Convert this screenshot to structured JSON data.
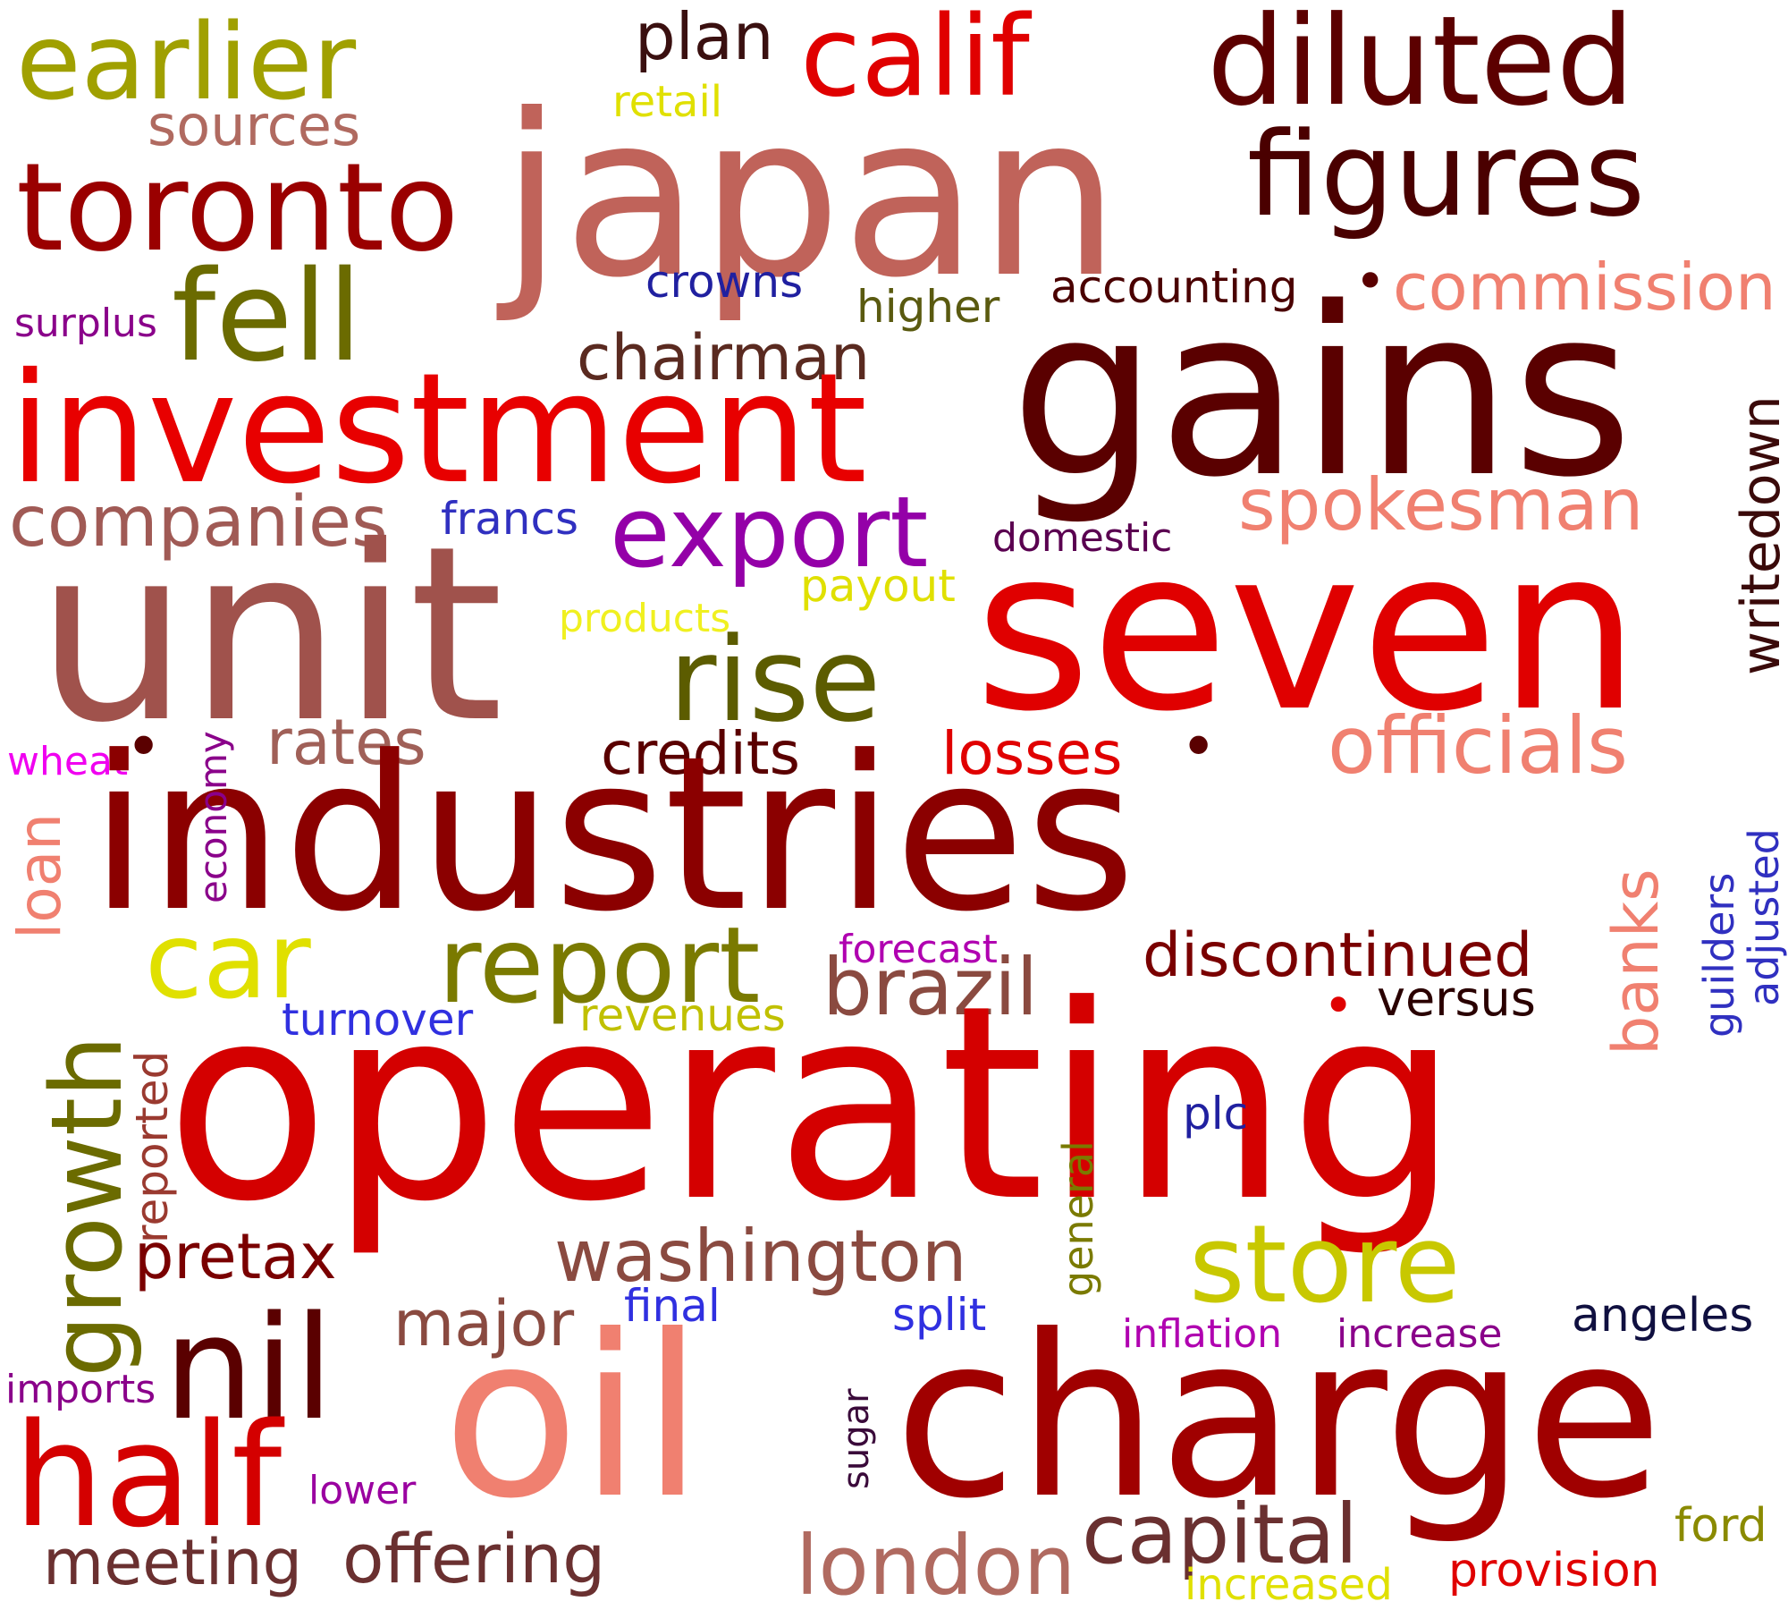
{
  "words": [
    {
      "id": "operating",
      "text": "operating",
      "color": "#d40000"
    },
    {
      "id": "industries",
      "text": "industries",
      "color": "#8b0000"
    },
    {
      "id": "japan",
      "text": "japan",
      "color": "#c0635a"
    },
    {
      "id": "unit",
      "text": "unit",
      "color": "#a0524c"
    },
    {
      "id": "seven",
      "text": "seven",
      "color": "#e00000"
    },
    {
      "id": "gains",
      "text": "gains",
      "color": "#5a0000"
    },
    {
      "id": "charge",
      "text": "charge",
      "color": "#a00000"
    },
    {
      "id": "oil",
      "text": "oil",
      "color": "#f08070"
    },
    {
      "id": "investment",
      "text": "investment",
      "color": "#e80000"
    },
    {
      "id": "toronto",
      "text": "toronto",
      "color": "#9a0000"
    },
    {
      "id": "figures",
      "text": "figures",
      "color": "#4a0000"
    },
    {
      "id": "diluted",
      "text": "diluted",
      "color": "#5c0000"
    },
    {
      "id": "calif",
      "text": "calif",
      "color": "#e00000"
    },
    {
      "id": "earlier",
      "text": "earlier",
      "color": "#a0a000"
    },
    {
      "id": "fell",
      "text": "fell",
      "color": "#6b6b00"
    },
    {
      "id": "half",
      "text": "half",
      "color": "#d40000"
    },
    {
      "id": "nil",
      "text": "nil",
      "color": "#5a0000"
    },
    {
      "id": "store",
      "text": "store",
      "color": "#c8c800"
    },
    {
      "id": "rise",
      "text": "rise",
      "color": "#5c5c00"
    },
    {
      "id": "export",
      "text": "export",
      "color": "#9400a8"
    },
    {
      "id": "car",
      "text": "car",
      "color": "#e0e000"
    },
    {
      "id": "report",
      "text": "report",
      "color": "#7a7a00"
    },
    {
      "id": "growth",
      "text": "growth",
      "color": "#6b6b00"
    },
    {
      "id": "companies",
      "text": "companies",
      "color": "#a05a55"
    },
    {
      "id": "spokesman",
      "text": "spokesman",
      "color": "#f08070"
    },
    {
      "id": "officials",
      "text": "officials",
      "color": "#f08070"
    },
    {
      "id": "commission",
      "text": "commission",
      "color": "#f08070"
    },
    {
      "id": "chairman",
      "text": "chairman",
      "color": "#5a2a20"
    },
    {
      "id": "sources",
      "text": "sources",
      "color": "#b06a60"
    },
    {
      "id": "plan",
      "text": "plan",
      "color": "#3a1010"
    },
    {
      "id": "retail",
      "text": "retail",
      "color": "#e0e000"
    },
    {
      "id": "accounting",
      "text": "accounting",
      "color": "#4a0000"
    },
    {
      "id": "crowns",
      "text": "crowns",
      "color": "#2020a0"
    },
    {
      "id": "higher",
      "text": "higher",
      "color": "#5a5a10"
    },
    {
      "id": "surplus",
      "text": "surplus",
      "color": "#8a008a"
    },
    {
      "id": "francs",
      "text": "francs",
      "color": "#3030c0"
    },
    {
      "id": "domestic",
      "text": "domestic",
      "color": "#5a0050"
    },
    {
      "id": "payout",
      "text": "payout",
      "color": "#e0e000"
    },
    {
      "id": "products",
      "text": "products",
      "color": "#f0f020"
    },
    {
      "id": "writedown",
      "text": "writedown",
      "color": "#3a0a0a"
    },
    {
      "id": "rates",
      "text": "rates",
      "color": "#a06058"
    },
    {
      "id": "credits",
      "text": "credits",
      "color": "#5a0000"
    },
    {
      "id": "losses",
      "text": "losses",
      "color": "#e00000"
    },
    {
      "id": "wheat",
      "text": "wheat",
      "color": "#f000f0"
    },
    {
      "id": "economy",
      "text": "economy",
      "color": "#8a008a"
    },
    {
      "id": "loan",
      "text": "loan",
      "color": "#f08070"
    },
    {
      "id": "banks",
      "text": "banks",
      "color": "#f08070"
    },
    {
      "id": "guilders",
      "text": "guilders",
      "color": "#3030c0"
    },
    {
      "id": "adjusted",
      "text": "adjusted",
      "color": "#3030c0"
    },
    {
      "id": "brazil",
      "text": "brazil",
      "color": "#8a4a40"
    },
    {
      "id": "discontinued",
      "text": "discontinued",
      "color": "#7a0000"
    },
    {
      "id": "versus",
      "text": "versus",
      "color": "#2a0000"
    },
    {
      "id": "forecast",
      "text": "forecast",
      "color": "#b000b0"
    },
    {
      "id": "turnover",
      "text": "turnover",
      "color": "#3030e0"
    },
    {
      "id": "revenues",
      "text": "revenues",
      "color": "#c0c000"
    },
    {
      "id": "reported",
      "text": "reported",
      "color": "#9a3a30"
    },
    {
      "id": "plc",
      "text": "plc",
      "color": "#2020a0"
    },
    {
      "id": "general",
      "text": "general",
      "color": "#7a7a00"
    },
    {
      "id": "pretax",
      "text": "pretax",
      "color": "#7a0000"
    },
    {
      "id": "washington",
      "text": "washington",
      "color": "#8a4a40"
    },
    {
      "id": "major",
      "text": "major",
      "color": "#8a4a40"
    },
    {
      "id": "final",
      "text": "final",
      "color": "#3030e0"
    },
    {
      "id": "split",
      "text": "split",
      "color": "#3030e0"
    },
    {
      "id": "inflation",
      "text": "inflation",
      "color": "#b000b0"
    },
    {
      "id": "increase",
      "text": "increase",
      "color": "#8a008a"
    },
    {
      "id": "angeles",
      "text": "angeles",
      "color": "#101040"
    },
    {
      "id": "imports",
      "text": "imports",
      "color": "#8a008a"
    },
    {
      "id": "sugar",
      "text": "sugar",
      "color": "#3a0a3a"
    },
    {
      "id": "lower",
      "text": "lower",
      "color": "#9a00a0"
    },
    {
      "id": "meeting",
      "text": "meeting",
      "color": "#6a3030"
    },
    {
      "id": "offering",
      "text": "offering",
      "color": "#6a3030"
    },
    {
      "id": "london",
      "text": "london",
      "color": "#b06a60"
    },
    {
      "id": "capital",
      "text": "capital",
      "color": "#6a3030"
    },
    {
      "id": "increased",
      "text": "increased",
      "color": "#e0e000"
    },
    {
      "id": "provision",
      "text": "provision",
      "color": "#e00000"
    },
    {
      "id": "ford",
      "text": "ford",
      "color": "#8a8a00"
    }
  ]
}
